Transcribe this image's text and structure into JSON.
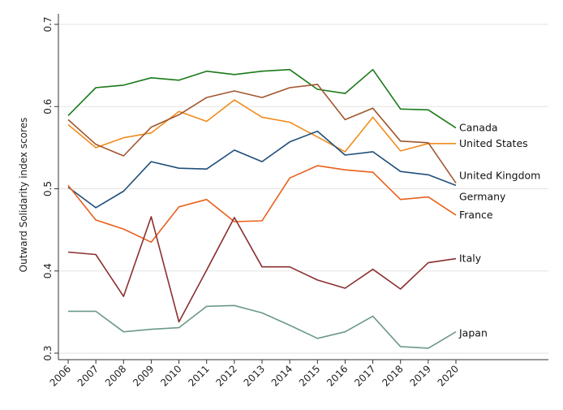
{
  "chart_data": {
    "type": "line",
    "title": "",
    "xlabel": "",
    "ylabel": "Outward Solidarity index scores",
    "x": [
      "2006",
      "2007",
      "2008",
      "2009",
      "2010",
      "2011",
      "2012",
      "2013",
      "2014",
      "2015",
      "2016",
      "2017",
      "2018",
      "2019",
      "2020"
    ],
    "ylim": [
      0.3,
      0.7
    ],
    "yticks": [
      "0.3",
      "0.4",
      "0.5",
      "0.6",
      "0.7"
    ],
    "grid": true,
    "legend": "direct labels at line ends",
    "series": [
      {
        "name": "Canada",
        "color": "#1a7a1a",
        "values": [
          0.589,
          0.623,
          0.626,
          0.635,
          0.632,
          0.643,
          0.639,
          0.643,
          0.645,
          0.621,
          0.616,
          0.645,
          0.597,
          0.596,
          0.574
        ]
      },
      {
        "name": "United States",
        "color": "#f08c1e",
        "values": [
          0.578,
          0.55,
          0.562,
          0.568,
          0.594,
          0.582,
          0.608,
          0.587,
          0.581,
          0.563,
          0.545,
          0.587,
          0.546,
          0.555,
          0.555
        ]
      },
      {
        "name": "United Kingdom",
        "color": "#a0572e",
        "values": [
          0.584,
          0.554,
          0.54,
          0.575,
          0.59,
          0.611,
          0.619,
          0.611,
          0.623,
          0.627,
          0.584,
          0.598,
          0.558,
          0.556,
          0.507
        ]
      },
      {
        "name": "Germany",
        "color": "#1f4e79",
        "values": [
          0.502,
          0.477,
          0.497,
          0.533,
          0.525,
          0.524,
          0.547,
          0.533,
          0.557,
          0.57,
          0.541,
          0.545,
          0.521,
          0.517,
          0.504
        ]
      },
      {
        "name": "France",
        "color": "#e8601c",
        "values": [
          0.504,
          0.462,
          0.451,
          0.435,
          0.478,
          0.487,
          0.46,
          0.461,
          0.513,
          0.528,
          0.523,
          0.52,
          0.487,
          0.49,
          0.468
        ]
      },
      {
        "name": "Italy",
        "color": "#8b2f2f",
        "values": [
          0.423,
          0.42,
          0.369,
          0.466,
          0.338,
          0.401,
          0.465,
          0.405,
          0.405,
          0.389,
          0.379,
          0.402,
          0.378,
          0.41,
          0.415
        ]
      },
      {
        "name": "Japan",
        "color": "#6b9a85",
        "values": [
          0.351,
          0.351,
          0.326,
          0.329,
          0.331,
          0.357,
          0.358,
          0.349,
          0.334,
          0.318,
          0.326,
          0.345,
          0.308,
          0.306,
          0.326
        ]
      }
    ]
  }
}
